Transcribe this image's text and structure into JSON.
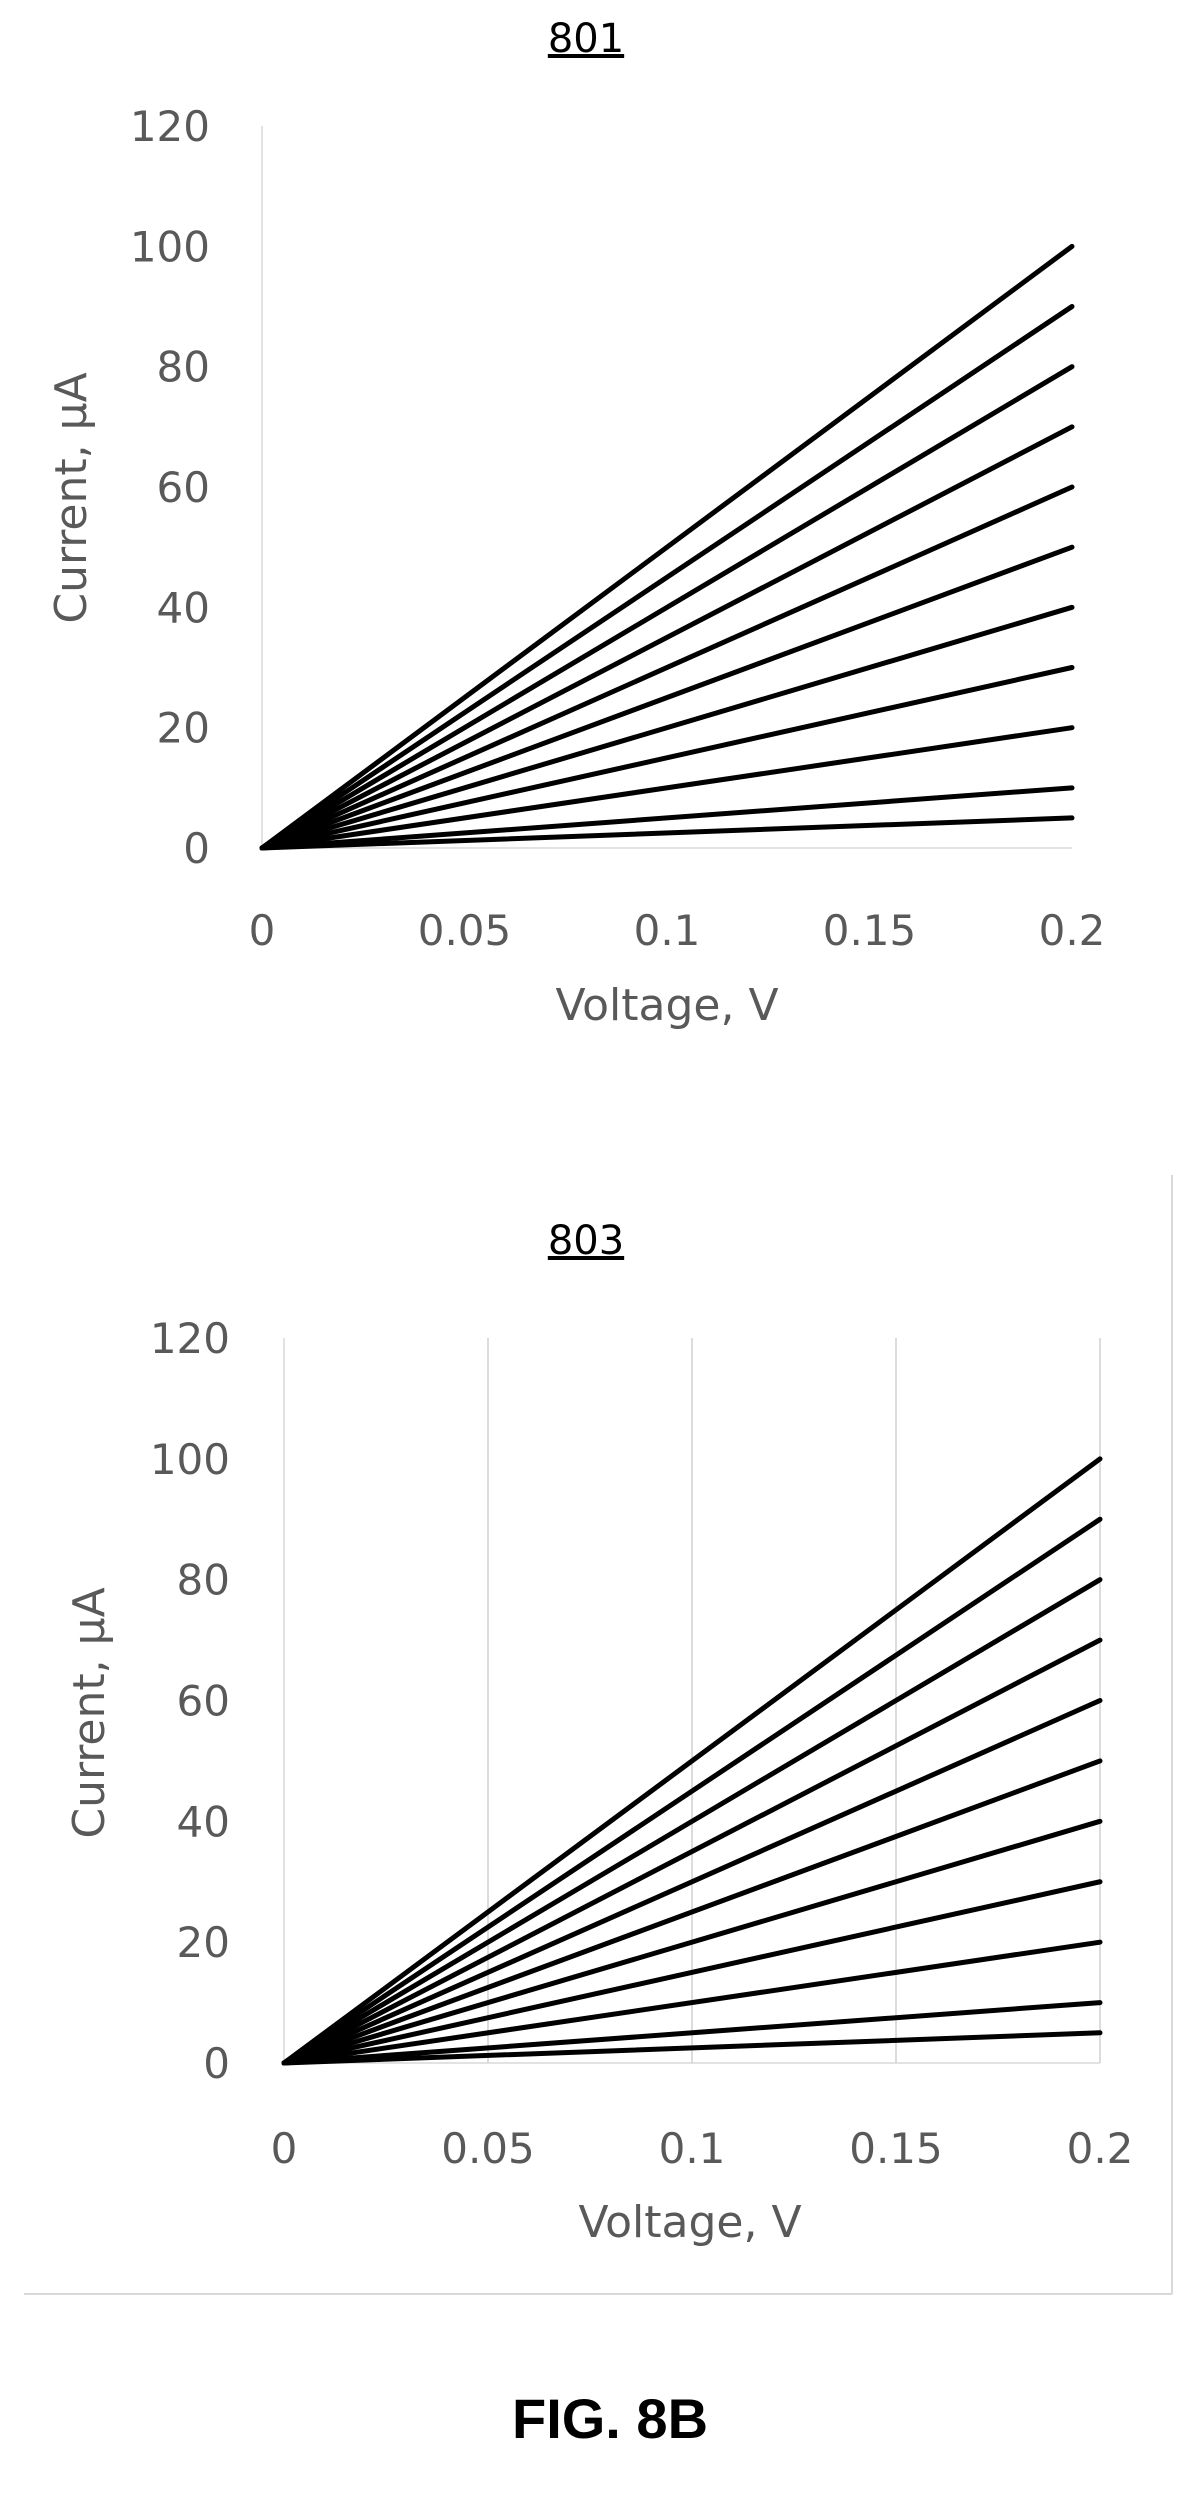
{
  "figure_caption": "FIG. 8B",
  "chart_data": [
    {
      "type": "line",
      "label": "801",
      "xlabel": "Voltage, V",
      "ylabel": "Current, µA",
      "xlim": [
        0,
        0.2
      ],
      "ylim": [
        0,
        120
      ],
      "x_ticks": [
        "0",
        "0.05",
        "0.1",
        "0.15",
        "0.2"
      ],
      "y_ticks": [
        "0",
        "20",
        "40",
        "60",
        "80",
        "100",
        "120"
      ],
      "grid": false,
      "x": [
        0,
        0.2
      ],
      "series": [
        {
          "values": [
            0,
            100
          ]
        },
        {
          "values": [
            0,
            90
          ]
        },
        {
          "values": [
            0,
            80
          ]
        },
        {
          "values": [
            0,
            70
          ]
        },
        {
          "values": [
            0,
            60
          ]
        },
        {
          "values": [
            0,
            50
          ]
        },
        {
          "values": [
            0,
            40
          ]
        },
        {
          "values": [
            0,
            30
          ]
        },
        {
          "values": [
            0,
            20
          ]
        },
        {
          "values": [
            0,
            10
          ]
        },
        {
          "values": [
            0,
            5
          ]
        }
      ]
    },
    {
      "type": "line",
      "label": "803",
      "xlabel": "Voltage, V",
      "ylabel": "Current, µA",
      "xlim": [
        0,
        0.2
      ],
      "ylim": [
        0,
        120
      ],
      "x_ticks": [
        "0",
        "0.05",
        "0.1",
        "0.15",
        "0.2"
      ],
      "y_ticks": [
        "0",
        "20",
        "40",
        "60",
        "80",
        "100",
        "120"
      ],
      "grid": true,
      "x": [
        0,
        0.2
      ],
      "series": [
        {
          "values": [
            0,
            100
          ]
        },
        {
          "values": [
            0,
            90
          ]
        },
        {
          "values": [
            0,
            80
          ]
        },
        {
          "values": [
            0,
            70
          ]
        },
        {
          "values": [
            0,
            60
          ]
        },
        {
          "values": [
            0,
            50
          ]
        },
        {
          "values": [
            0,
            40
          ]
        },
        {
          "values": [
            0,
            30
          ]
        },
        {
          "values": [
            0,
            20
          ]
        },
        {
          "values": [
            0,
            10
          ]
        },
        {
          "values": [
            0,
            5
          ]
        }
      ]
    }
  ]
}
